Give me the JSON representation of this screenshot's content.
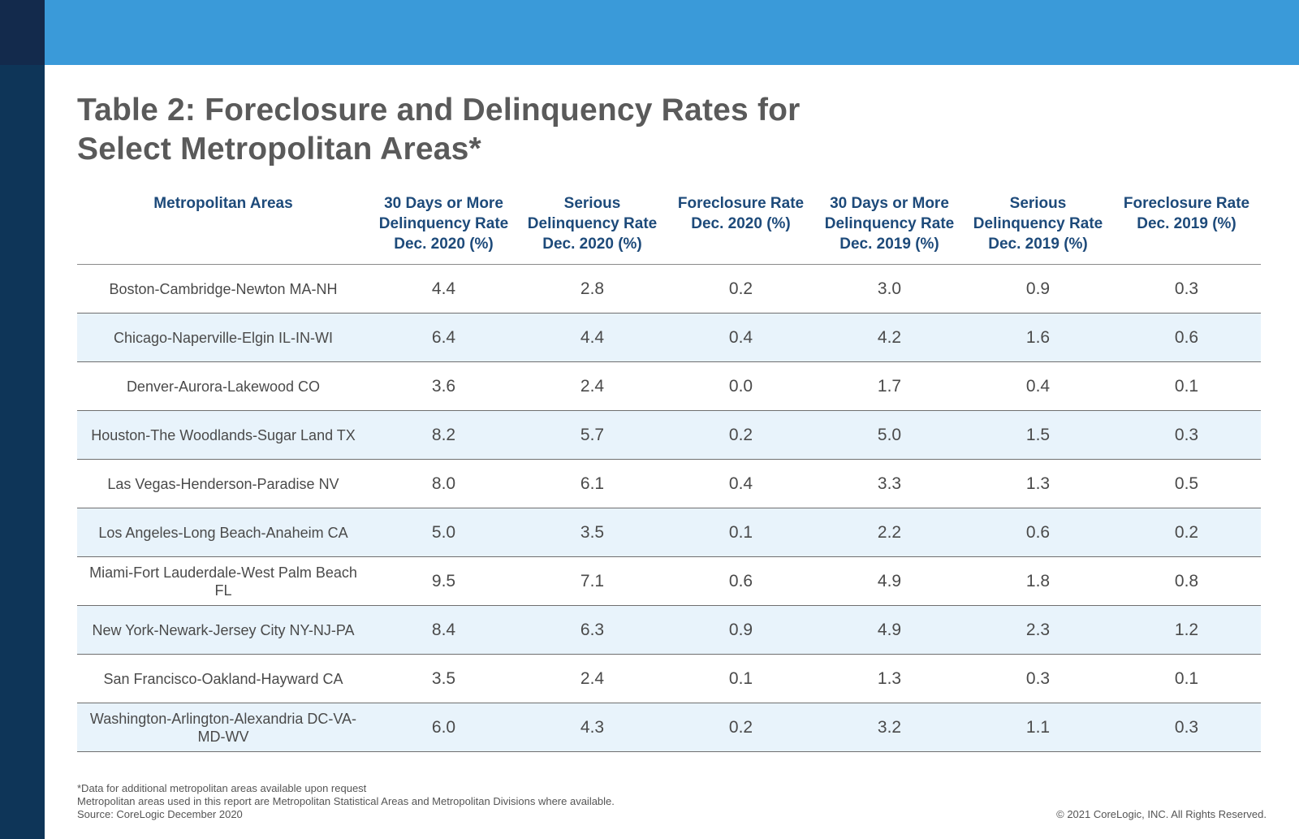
{
  "title": "Table 2: Foreclosure and Delinquency Rates for Select Metropolitan Areas*",
  "colors": {
    "top_bar": "#3a9ad9",
    "left_bar": "#0e3558",
    "header_text": "#1d4a7a",
    "row_alt": "#e8f3fb"
  },
  "table": {
    "headers": [
      "Metropolitan Areas",
      "30 Days or More Delinquency Rate Dec. 2020 (%)",
      "Serious Delinquency Rate Dec. 2020 (%)",
      "Foreclosure Rate Dec. 2020 (%)",
      "30 Days or More Delinquency Rate Dec. 2019 (%)",
      "Serious Delinquency Rate Dec. 2019 (%)",
      "Foreclosure Rate Dec. 2019 (%)"
    ],
    "rows": [
      {
        "area": "Boston-Cambridge-Newton MA-NH",
        "values": [
          "4.4",
          "2.8",
          "0.2",
          "3.0",
          "0.9",
          "0.3"
        ]
      },
      {
        "area": "Chicago-Naperville-Elgin IL-IN-WI",
        "values": [
          "6.4",
          "4.4",
          "0.4",
          "4.2",
          "1.6",
          "0.6"
        ]
      },
      {
        "area": "Denver-Aurora-Lakewood CO",
        "values": [
          "3.6",
          "2.4",
          "0.0",
          "1.7",
          "0.4",
          "0.1"
        ]
      },
      {
        "area": "Houston-The Woodlands-Sugar Land TX",
        "values": [
          "8.2",
          "5.7",
          "0.2",
          "5.0",
          "1.5",
          "0.3"
        ]
      },
      {
        "area": "Las Vegas-Henderson-Paradise NV",
        "values": [
          "8.0",
          "6.1",
          "0.4",
          "3.3",
          "1.3",
          "0.5"
        ]
      },
      {
        "area": "Los Angeles-Long Beach-Anaheim CA",
        "values": [
          "5.0",
          "3.5",
          "0.1",
          "2.2",
          "0.6",
          "0.2"
        ]
      },
      {
        "area": "Miami-Fort Lauderdale-West Palm Beach FL",
        "values": [
          "9.5",
          "7.1",
          "0.6",
          "4.9",
          "1.8",
          "0.8"
        ]
      },
      {
        "area": "New York-Newark-Jersey City NY-NJ-PA",
        "values": [
          "8.4",
          "6.3",
          "0.9",
          "4.9",
          "2.3",
          "1.2"
        ]
      },
      {
        "area": "San Francisco-Oakland-Hayward CA",
        "values": [
          "3.5",
          "2.4",
          "0.1",
          "1.3",
          "0.3",
          "0.1"
        ]
      },
      {
        "area": "Washington-Arlington-Alexandria DC-VA-MD-WV",
        "values": [
          "6.0",
          "4.3",
          "0.2",
          "3.2",
          "1.1",
          "0.3"
        ]
      }
    ]
  },
  "footnotes": [
    "*Data for additional metropolitan areas available upon request",
    "Metropolitan areas used in this report are Metropolitan Statistical Areas and Metropolitan Divisions where available.",
    "Source: CoreLogic December 2020"
  ],
  "copyright": "© 2021 CoreLogic, INC. All Rights Reserved."
}
